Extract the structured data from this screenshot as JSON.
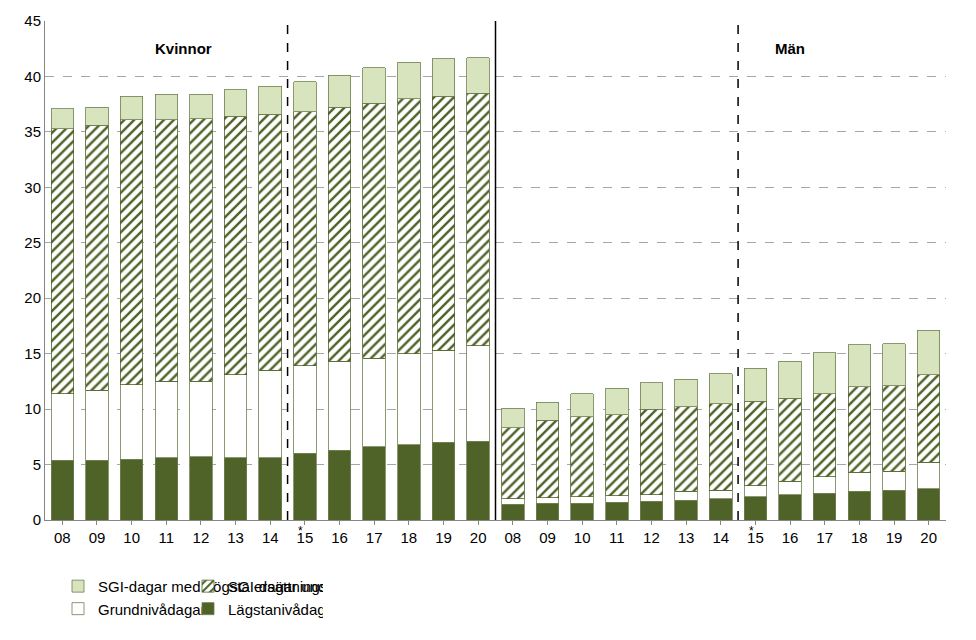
{
  "chart_data": {
    "type": "bar",
    "stacked": true,
    "grid": true,
    "legend": "bottom",
    "categories": [
      "08",
      "09",
      "10",
      "11",
      "12",
      "13",
      "14",
      "15",
      "16",
      "17",
      "18",
      "19",
      "20",
      "08",
      "09",
      "10",
      "11",
      "12",
      "13",
      "14",
      "15",
      "16",
      "17",
      "18",
      "19",
      "20"
    ],
    "groups": [
      {
        "label": "Kvinnor",
        "size": 13
      },
      {
        "label": "Män",
        "size": 13
      }
    ],
    "footnote_marks": [
      {
        "category": "15",
        "text": "*"
      }
    ],
    "ylim": [
      0,
      45
    ],
    "yticks": [
      0,
      5,
      10,
      15,
      20,
      25,
      30,
      35,
      40,
      45
    ],
    "series": [
      {
        "name": "Lägstanivådagar",
        "color": "#4f6228",
        "values": [
          5.4,
          5.4,
          5.5,
          5.6,
          5.7,
          5.6,
          5.6,
          6.0,
          6.3,
          6.6,
          6.8,
          7.0,
          7.1,
          1.4,
          1.5,
          1.5,
          1.6,
          1.7,
          1.8,
          1.9,
          2.1,
          2.3,
          2.4,
          2.6,
          2.7,
          2.8
        ]
      },
      {
        "name": "Grundnivådagar",
        "color": "#ffffff",
        "values": [
          6.0,
          6.3,
          6.7,
          6.9,
          6.8,
          7.5,
          7.9,
          7.9,
          8.0,
          8.0,
          8.2,
          8.3,
          8.6,
          0.5,
          0.5,
          0.6,
          0.6,
          0.6,
          0.8,
          0.8,
          1.0,
          1.2,
          1.5,
          1.7,
          1.7,
          2.4
        ]
      },
      {
        "name": "SGI-dagar under högsta ersättningsnivå",
        "color": "#4f6228",
        "marker": "hatch",
        "values": [
          23.9,
          23.9,
          23.9,
          23.6,
          23.7,
          23.3,
          23.1,
          22.9,
          22.9,
          23.0,
          23.0,
          22.9,
          22.8,
          6.4,
          7.0,
          7.2,
          7.3,
          7.7,
          7.6,
          7.8,
          7.6,
          7.5,
          7.5,
          7.7,
          7.7,
          7.9
        ]
      },
      {
        "name": "SGI-dagar med högsta ersättningsnivå",
        "color": "#d7e4bd",
        "values": [
          1.8,
          1.6,
          2.1,
          2.3,
          2.2,
          2.4,
          2.5,
          2.7,
          2.9,
          3.2,
          3.3,
          3.4,
          3.2,
          1.8,
          1.6,
          2.1,
          2.4,
          2.4,
          2.5,
          2.7,
          3.0,
          3.3,
          3.7,
          3.8,
          3.8,
          4.0
        ]
      }
    ]
  }
}
